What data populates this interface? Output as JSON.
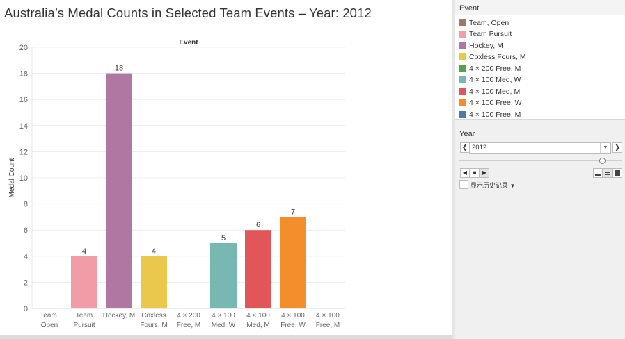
{
  "title": "Australia’s Medal Counts in Selected Team Events – Year:  2012",
  "chart_data": {
    "type": "bar",
    "header": "Event",
    "ylabel": "Medal Count",
    "ylim": [
      0,
      20
    ],
    "yticks": [
      "0",
      "2",
      "4",
      "6",
      "8",
      "10",
      "12",
      "14",
      "16",
      "18",
      "20"
    ],
    "categories": [
      {
        "line1": "Team,",
        "line2": "Open"
      },
      {
        "line1": "Team",
        "line2": "Pursuit"
      },
      {
        "line1": "Hockey, M",
        "line2": ""
      },
      {
        "line1": "Coxless",
        "line2": "Fours, M"
      },
      {
        "line1": "4 × 200",
        "line2": "Free, M"
      },
      {
        "line1": "4 × 100",
        "line2": "Med, W"
      },
      {
        "line1": "4 × 100",
        "line2": "Med, M"
      },
      {
        "line1": "4 × 100",
        "line2": "Free, W"
      },
      {
        "line1": "4 × 100",
        "line2": "Free, M"
      }
    ],
    "values": [
      0,
      4,
      18,
      4,
      0,
      5,
      6,
      7,
      0
    ],
    "labels": [
      "",
      "4",
      "18",
      "4",
      "",
      "5",
      "6",
      "7",
      ""
    ],
    "colors": [
      "#9c7a66",
      "#f19ca7",
      "#b077a2",
      "#eac84b",
      "#57a14d",
      "#78b8b2",
      "#e15759",
      "#f28e2b",
      "#4e79a7"
    ],
    "grid": true,
    "legend_position": "right"
  },
  "legend": {
    "title": "Event",
    "items": [
      {
        "label": "Team, Open",
        "color": "#9c7a66"
      },
      {
        "label": "Team Pursuit",
        "color": "#f19ca7"
      },
      {
        "label": "Hockey, M",
        "color": "#b077a2"
      },
      {
        "label": "Coxless Fours, M",
        "color": "#eac84b"
      },
      {
        "label": "4 × 200 Free, M",
        "color": "#57a14d"
      },
      {
        "label": "4 × 100  Med, W",
        "color": "#78b8b2"
      },
      {
        "label": "4 × 100 Med, M",
        "color": "#e15759"
      },
      {
        "label": "4 × 100 Free, W",
        "color": "#f28e2b"
      },
      {
        "label": "4 × 100 Free, M",
        "color": "#4e79a7"
      }
    ]
  },
  "filter": {
    "title": "Year",
    "selected": "2012",
    "slider_fraction": 0.88,
    "history_label": "显示历史记录",
    "prev_icon": "chevron-left-icon",
    "next_icon": "chevron-right-icon"
  }
}
